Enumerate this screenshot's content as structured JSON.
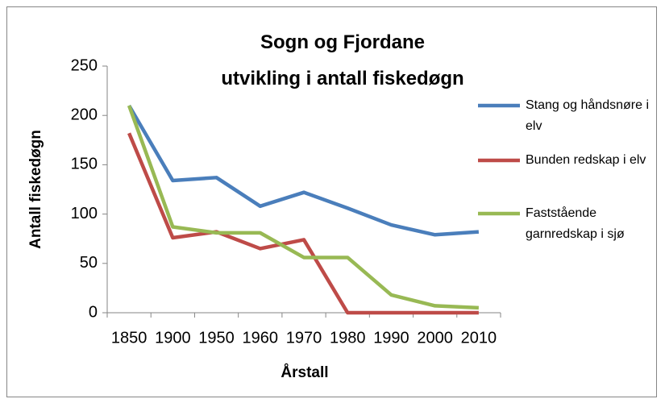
{
  "chart_data": {
    "type": "line",
    "title": "Sogn og Fjordane\nutvikling i antall fiskedøgn",
    "x_label": "Årstall",
    "y_label": "Antall fiskedøgn",
    "categories": [
      "1850",
      "1900",
      "1950",
      "1960",
      "1970",
      "1980",
      "1990",
      "2000",
      "2010"
    ],
    "series": [
      {
        "name": "Stang og håndsnøre i elv",
        "color": "#4a7ebb",
        "values": [
          210,
          134,
          137,
          108,
          122,
          106,
          89,
          79,
          82
        ]
      },
      {
        "name": "Bunden redskap i elv",
        "color": "#be4b48",
        "values": [
          182,
          76,
          82,
          65,
          74,
          0,
          0,
          0,
          0
        ]
      },
      {
        "name": "Faststående garnredskap i sjø",
        "color": "#98b954",
        "values": [
          210,
          87,
          81,
          81,
          56,
          56,
          18,
          7,
          5
        ]
      }
    ],
    "ylim": [
      0,
      250
    ],
    "yticks": [
      0,
      50,
      100,
      150,
      200,
      250
    ],
    "legend": "right"
  }
}
